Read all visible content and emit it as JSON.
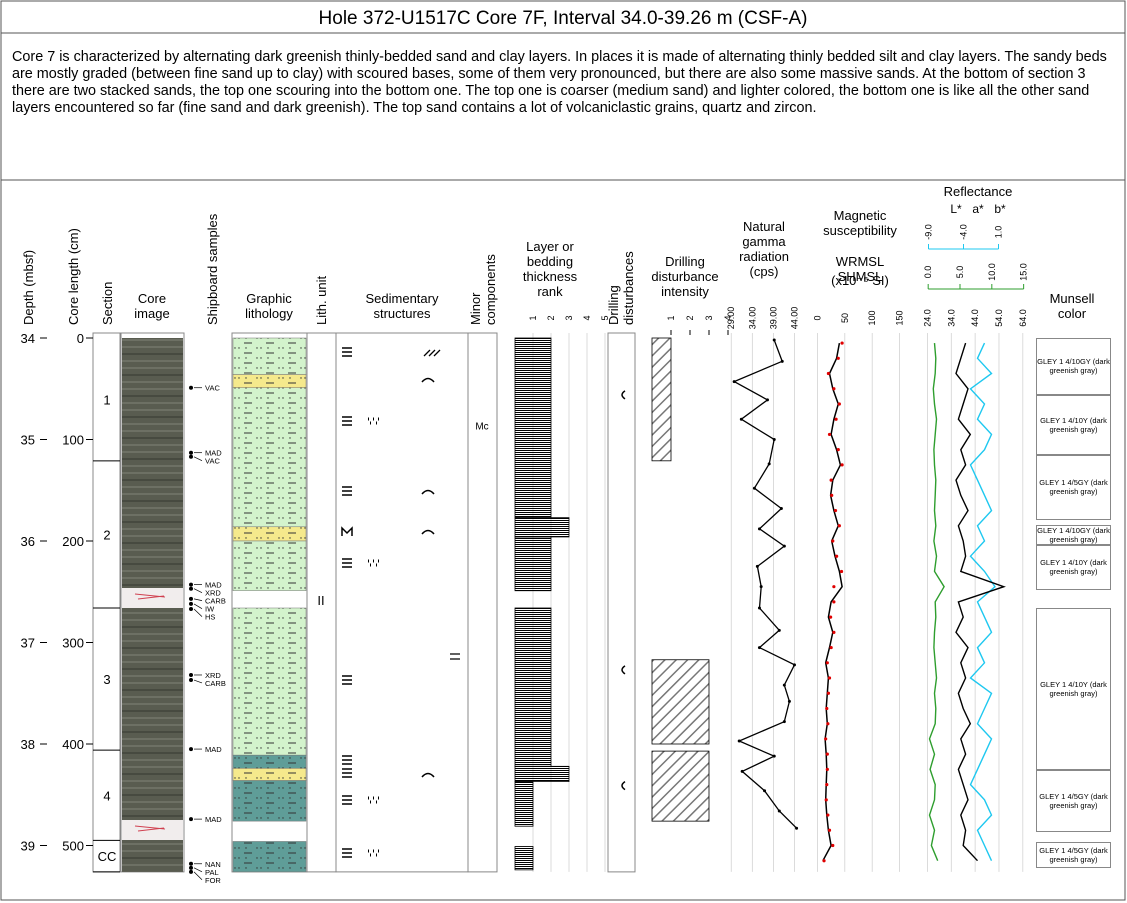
{
  "header": {
    "title": "Hole 372-U1517C Core 7F, Interval 34.0-39.26 m (CSF-A)"
  },
  "description": "Core 7 is characterized by alternating dark greenish thinly-bedded sand and clay layers. In places it is made of alternating thinly bedded silt and clay layers. The sandy beds are mostly graded (between fine sand up to clay) with scoured bases, some of them very pronounced, but there are also some massive sands. At the bottom of section 3 there are two stacked sands, the top one scouring into the bottom one. The top one is coarser (medium sand) and lighter colored, the bottom one is like all the other sand layers encountered so far (fine sand and dark greenish). The top sand contains a lot of volcaniclastic grains, quartz and zircon.",
  "columns": {
    "depth": "Depth (mbsf)",
    "core_length": "Core length (cm)",
    "section": "Section",
    "core_image": [
      "Core",
      "image"
    ],
    "samples": "Shipboard samples",
    "lithology": [
      "Graphic",
      "lithology"
    ],
    "lith_unit": "Lith. unit",
    "structures": [
      "Sedimentary",
      "structures"
    ],
    "minor": [
      "Minor",
      "components"
    ],
    "thickness": [
      "Layer or",
      "bedding",
      "thickness",
      "rank"
    ],
    "disturbances": [
      "Drilling",
      "disturbances"
    ],
    "intensity": [
      "Drilling",
      "disturbance",
      "intensity"
    ],
    "gamma": [
      "Natural",
      "gamma",
      "radiation",
      "(cps)"
    ],
    "magsus": [
      "Magnetic",
      "susceptibility"
    ],
    "reflectance": "Reflectance",
    "munsell": [
      "Munsell",
      "color"
    ]
  },
  "depth_axis": {
    "ylim": [
      34,
      39.26
    ],
    "ticks": [
      34,
      35,
      36,
      37,
      38,
      39
    ]
  },
  "core_length_axis": {
    "ylim": [
      0,
      526
    ],
    "ticks": [
      0,
      100,
      200,
      300,
      400,
      500
    ]
  },
  "sections": [
    {
      "label": "1",
      "top": 0,
      "bottom": 121
    },
    {
      "label": "2",
      "top": 121,
      "bottom": 266
    },
    {
      "label": "3",
      "top": 266,
      "bottom": 406
    },
    {
      "label": "4",
      "top": 406,
      "bottom": 495
    },
    {
      "label": "CC",
      "top": 495,
      "bottom": 526
    }
  ],
  "samples": [
    {
      "label": "VAC",
      "cm": 49
    },
    {
      "label": "MAD",
      "cm": 113
    },
    {
      "label": "VAC",
      "cm": 117
    },
    {
      "label": "MAD",
      "cm": 243
    },
    {
      "label": "XRD",
      "cm": 247
    },
    {
      "label": "CARB",
      "cm": 257
    },
    {
      "label": "IW",
      "cm": 262
    },
    {
      "label": "HS",
      "cm": 267
    },
    {
      "label": "XRD",
      "cm": 332
    },
    {
      "label": "CARB",
      "cm": 337
    },
    {
      "label": "MAD",
      "cm": 405
    },
    {
      "label": "MAD",
      "cm": 474
    },
    {
      "label": "NAN",
      "cm": 518
    },
    {
      "label": "PAL",
      "cm": 522
    },
    {
      "label": "FOR",
      "cm": 526
    }
  ],
  "lithology": [
    {
      "color": "#d3f3cc",
      "top": 0,
      "bottom": 36
    },
    {
      "color": "#f5e98c",
      "top": 36,
      "bottom": 49
    },
    {
      "color": "#d3f3cc",
      "top": 49,
      "bottom": 186
    },
    {
      "color": "#f5e98c",
      "top": 186,
      "bottom": 200
    },
    {
      "color": "#d3f3cc",
      "top": 200,
      "bottom": 249
    },
    {
      "color": "#d3f3cc",
      "top": 266,
      "bottom": 411
    },
    {
      "color": "#5f9d98",
      "top": 411,
      "bottom": 424
    },
    {
      "color": "#f5e98c",
      "top": 424,
      "bottom": 436
    },
    {
      "color": "#5f9d98",
      "top": 436,
      "bottom": 476
    },
    {
      "color": "#5f9d98",
      "top": 496,
      "bottom": 526
    }
  ],
  "lith_unit": {
    "label": "II",
    "cm": 258
  },
  "minor_components": [
    {
      "label": "Mc",
      "cm": 86
    }
  ],
  "thickness_rank": {
    "xlim": [
      0,
      5
    ],
    "xticks": [
      1,
      2,
      3,
      4,
      5
    ],
    "intervals": [
      {
        "top": 0,
        "bottom": 177,
        "value": 2
      },
      {
        "top": 177,
        "bottom": 196,
        "value": 3
      },
      {
        "top": 196,
        "bottom": 249,
        "value": 2
      },
      {
        "top": 266,
        "bottom": 422,
        "value": 2
      },
      {
        "top": 422,
        "bottom": 437,
        "value": 3
      },
      {
        "top": 437,
        "bottom": 481,
        "value": 1
      },
      {
        "top": 501,
        "bottom": 524,
        "value": 1
      }
    ]
  },
  "drilling_disturbances": [
    56,
    327,
    441
  ],
  "disturbance_intensity": {
    "xlim": [
      0,
      4
    ],
    "xticks": [
      1,
      2,
      3,
      4
    ],
    "intervals": [
      {
        "top": 0,
        "bottom": 121,
        "value": 1
      },
      {
        "top": 317,
        "bottom": 400,
        "value": 3
      },
      {
        "top": 407,
        "bottom": 476,
        "value": 3
      }
    ]
  },
  "gamma": {
    "color": "#000000",
    "xlim": [
      28,
      46.5
    ],
    "xticks": [
      {
        "value": 29,
        "label": "29.00"
      },
      {
        "value": 34,
        "label": "34.00"
      },
      {
        "value": 39,
        "label": "39.00"
      },
      {
        "value": 44,
        "label": "44.00"
      }
    ],
    "depth": [
      34.02,
      34.23,
      34.43,
      34.61,
      34.8,
      35.0,
      35.24,
      35.48,
      35.68,
      35.88,
      36.05,
      36.25,
      36.45,
      36.66,
      36.88,
      37.05,
      37.22,
      37.42,
      37.58,
      37.78,
      37.97,
      38.12,
      38.27,
      38.46,
      38.66,
      38.83
    ],
    "values": [
      39.2,
      41.1,
      29.7,
      37.6,
      31.4,
      39.2,
      38.0,
      34.5,
      40.9,
      35.7,
      41.6,
      35.2,
      36.1,
      35.7,
      40.4,
      35.7,
      44.0,
      41.6,
      42.8,
      41.6,
      30.9,
      39.2,
      31.6,
      36.9,
      40.4,
      44.5
    ]
  },
  "magsus": {
    "unit": "(x10⁻⁵ SI)",
    "xlim": [
      -10,
      160
    ],
    "xticks": [
      0,
      50,
      100,
      150
    ],
    "depth": [
      34.05,
      34.2,
      34.35,
      34.5,
      34.65,
      34.8,
      34.95,
      35.1,
      35.25,
      35.4,
      35.55,
      35.7,
      35.85,
      36.0,
      36.15,
      36.3,
      36.45,
      36.6,
      36.75,
      36.9,
      37.05,
      37.2,
      37.35,
      37.5,
      37.65,
      37.8,
      37.95,
      38.1,
      38.25,
      38.4,
      38.55,
      38.7,
      38.85,
      39.0,
      39.15
    ],
    "series": [
      {
        "name": "WRMSL",
        "color": "#000000",
        "values": [
          40,
          35,
          22,
          28,
          38,
          30,
          25,
          35,
          42,
          28,
          24,
          30,
          38,
          26,
          32,
          40,
          45,
          25,
          20,
          28,
          22,
          15,
          20,
          18,
          16,
          18,
          14,
          16,
          17,
          16,
          15,
          17,
          20,
          25,
          10
        ]
      },
      {
        "name": "SHMSL",
        "color": "#e00000",
        "points": true,
        "values": [
          45,
          38,
          20,
          30,
          40,
          34,
          22,
          38,
          45,
          25,
          26,
          33,
          40,
          28,
          35,
          44,
          30,
          30,
          24,
          30,
          25,
          18,
          22,
          20,
          17,
          19,
          15,
          18,
          18,
          17,
          16,
          19,
          22,
          28,
          12
        ]
      }
    ]
  },
  "reflectance": {
    "depth": [
      34.05,
      34.2,
      34.35,
      34.5,
      34.65,
      34.8,
      34.95,
      35.1,
      35.25,
      35.4,
      35.55,
      35.7,
      35.85,
      36.0,
      36.15,
      36.3,
      36.45,
      36.6,
      36.75,
      36.9,
      37.05,
      37.2,
      37.35,
      37.5,
      37.65,
      37.8,
      37.95,
      38.1,
      38.25,
      38.4,
      38.55,
      38.7,
      38.85,
      39.0,
      39.15
    ],
    "series": [
      {
        "name": "L*",
        "color": "#000000",
        "xlim": [
          23,
          67
        ],
        "xticks": [
          {
            "value": 24,
            "label": "24.0"
          },
          {
            "value": 34,
            "label": "34.0"
          },
          {
            "value": 44,
            "label": "44.0"
          },
          {
            "value": 54,
            "label": "54.0"
          },
          {
            "value": 64,
            "label": "64.0"
          }
        ],
        "values": [
          40,
          38,
          36,
          41,
          39,
          37,
          42,
          38,
          40,
          36,
          38,
          41,
          37,
          39,
          40,
          38,
          56,
          37,
          39,
          36,
          41,
          38,
          40,
          37,
          39,
          42,
          38,
          40,
          37,
          39,
          41,
          38,
          40,
          39,
          45
        ]
      },
      {
        "name": "a*",
        "color": "#2e9e2e",
        "xlim": [
          -0.5,
          16
        ],
        "xticks": [
          {
            "value": 0,
            "label": "0.0"
          },
          {
            "value": 5,
            "label": "5.0"
          },
          {
            "value": 10,
            "label": "10.0"
          },
          {
            "value": 15,
            "label": "15.0"
          }
        ],
        "values": [
          1.0,
          1.2,
          1.1,
          0.8,
          1.0,
          1.3,
          1.1,
          0.9,
          1.0,
          1.2,
          1.1,
          1.0,
          1.2,
          0.9,
          1.3,
          1.0,
          2.5,
          1.1,
          1.2,
          1.0,
          0.9,
          1.1,
          1.3,
          1.0,
          1.2,
          1.1,
          0.2,
          1.0,
          0.3,
          1.1,
          1.0,
          0.2,
          1.0,
          0.5,
          1.5
        ]
      },
      {
        "name": "b*",
        "color": "#1ec8f0",
        "xlim": [
          -9.5,
          5.5
        ],
        "xticks": [
          {
            "value": -9,
            "label": "-9.0"
          },
          {
            "value": -4,
            "label": "-4.0"
          },
          {
            "value": 1,
            "label": "1.0"
          }
        ],
        "values": [
          -1,
          -2,
          0,
          -3,
          -1,
          -2,
          0,
          -1,
          -3,
          -2,
          -1,
          0,
          -2,
          -1,
          -3,
          -1,
          0.5,
          -2,
          -1,
          0,
          -2,
          -1,
          -3,
          0,
          -1,
          -2,
          0,
          -1,
          -2,
          -3,
          -1,
          0,
          -2,
          -1,
          0
        ]
      }
    ]
  },
  "munsell": [
    {
      "label": "GLEY 1 4/10GY (dark greenish gray)",
      "top": 0,
      "bottom": 56
    },
    {
      "label": "GLEY 1 4/10Y (dark greenish gray)",
      "top": 56,
      "bottom": 115
    },
    {
      "label": "GLEY 1 4/5GY (dark greenish gray)",
      "top": 115,
      "bottom": 179
    },
    {
      "label": "GLEY 1 4/10GY (dark greenish gray)",
      "top": 184,
      "bottom": 204
    },
    {
      "label": "GLEY 1 4/10Y (dark greenish gray)",
      "top": 204,
      "bottom": 248
    },
    {
      "label": "GLEY 1 4/10Y (dark greenish gray)",
      "top": 266,
      "bottom": 426
    },
    {
      "label": "GLEY 1 4/5GY (dark greenish gray)",
      "top": 426,
      "bottom": 487
    },
    {
      "label": "GLEY 1 4/5GY (dark greenish gray)",
      "top": 497,
      "bottom": 522
    }
  ]
}
